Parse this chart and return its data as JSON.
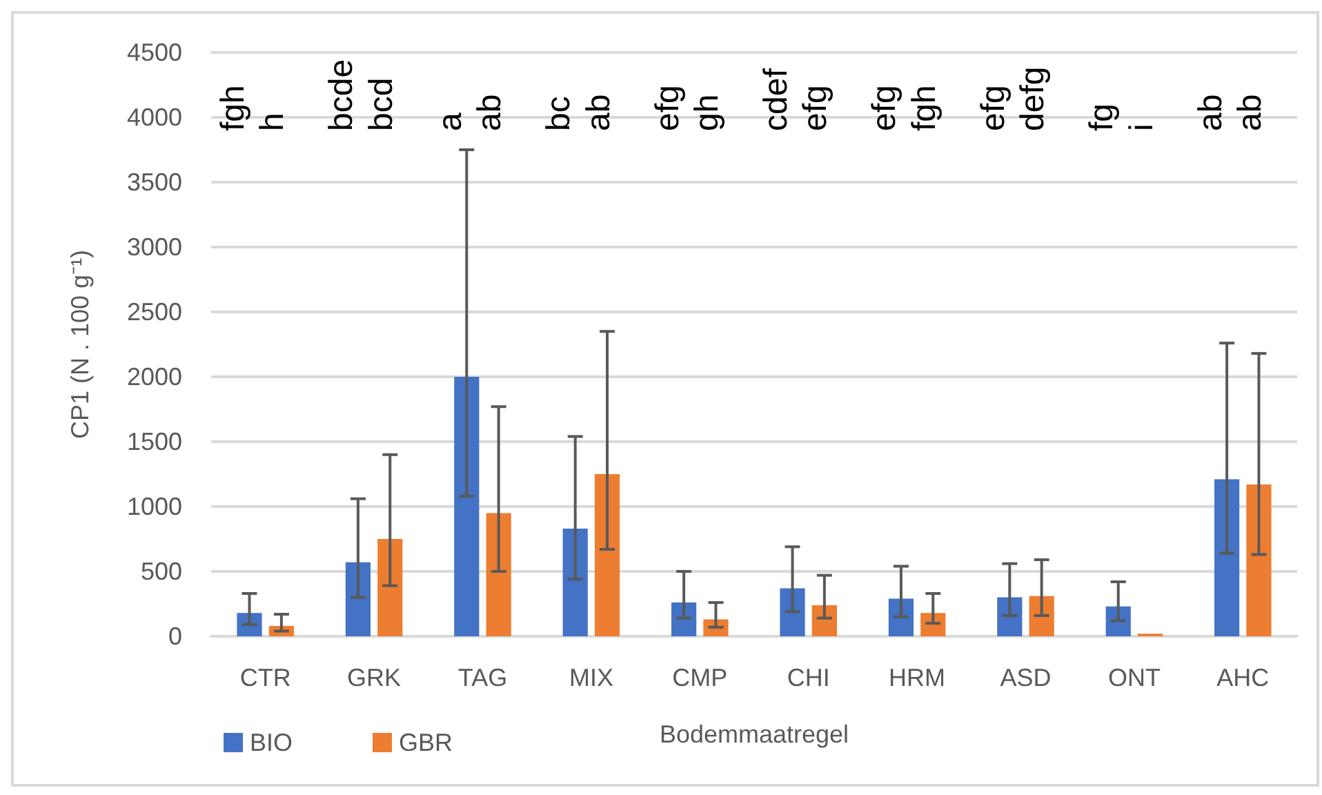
{
  "chart_data": {
    "type": "bar",
    "xlabel": "Bodemmaatregel",
    "ylabel": "CP1 (N . 100 g⁻¹)",
    "categories": [
      "CTR",
      "GRK",
      "TAG",
      "MIX",
      "CMP",
      "CHI",
      "HRM",
      "ASD",
      "ONT",
      "AHC"
    ],
    "series": [
      {
        "name": "BIO",
        "color": "#4472c4",
        "values": [
          180,
          570,
          2000,
          830,
          260,
          370,
          290,
          300,
          230,
          1210
        ],
        "errors": [
          [
            90,
            330
          ],
          [
            300,
            1060
          ],
          [
            1080,
            3750
          ],
          [
            440,
            1540
          ],
          [
            140,
            500
          ],
          [
            190,
            690
          ],
          [
            150,
            540
          ],
          [
            160,
            560
          ],
          [
            120,
            420
          ],
          [
            640,
            2260
          ]
        ]
      },
      {
        "name": "GBR",
        "color": "#ed7d31",
        "values": [
          80,
          750,
          950,
          1250,
          130,
          240,
          180,
          310,
          20,
          1170
        ],
        "errors": [
          [
            40,
            170
          ],
          [
            390,
            1400
          ],
          [
            500,
            1770
          ],
          [
            670,
            2350
          ],
          [
            70,
            260
          ],
          [
            140,
            470
          ],
          [
            100,
            330
          ],
          [
            160,
            590
          ],
          null,
          [
            630,
            2180
          ]
        ]
      }
    ],
    "annotations": [
      "fgh",
      "h",
      "bcde",
      "bcd",
      "a",
      "ab",
      "bc",
      "ab",
      "efg",
      "gh",
      "cdef",
      "efg",
      "efg",
      "fgh",
      "efg",
      "defg",
      "fg",
      "i",
      "ab",
      "ab"
    ],
    "ylim": [
      0,
      4500
    ],
    "yticks": [
      0,
      500,
      1000,
      1500,
      2000,
      2500,
      3000,
      3500,
      4000,
      4500
    ],
    "grid": "y",
    "legend": "bottom left"
  }
}
